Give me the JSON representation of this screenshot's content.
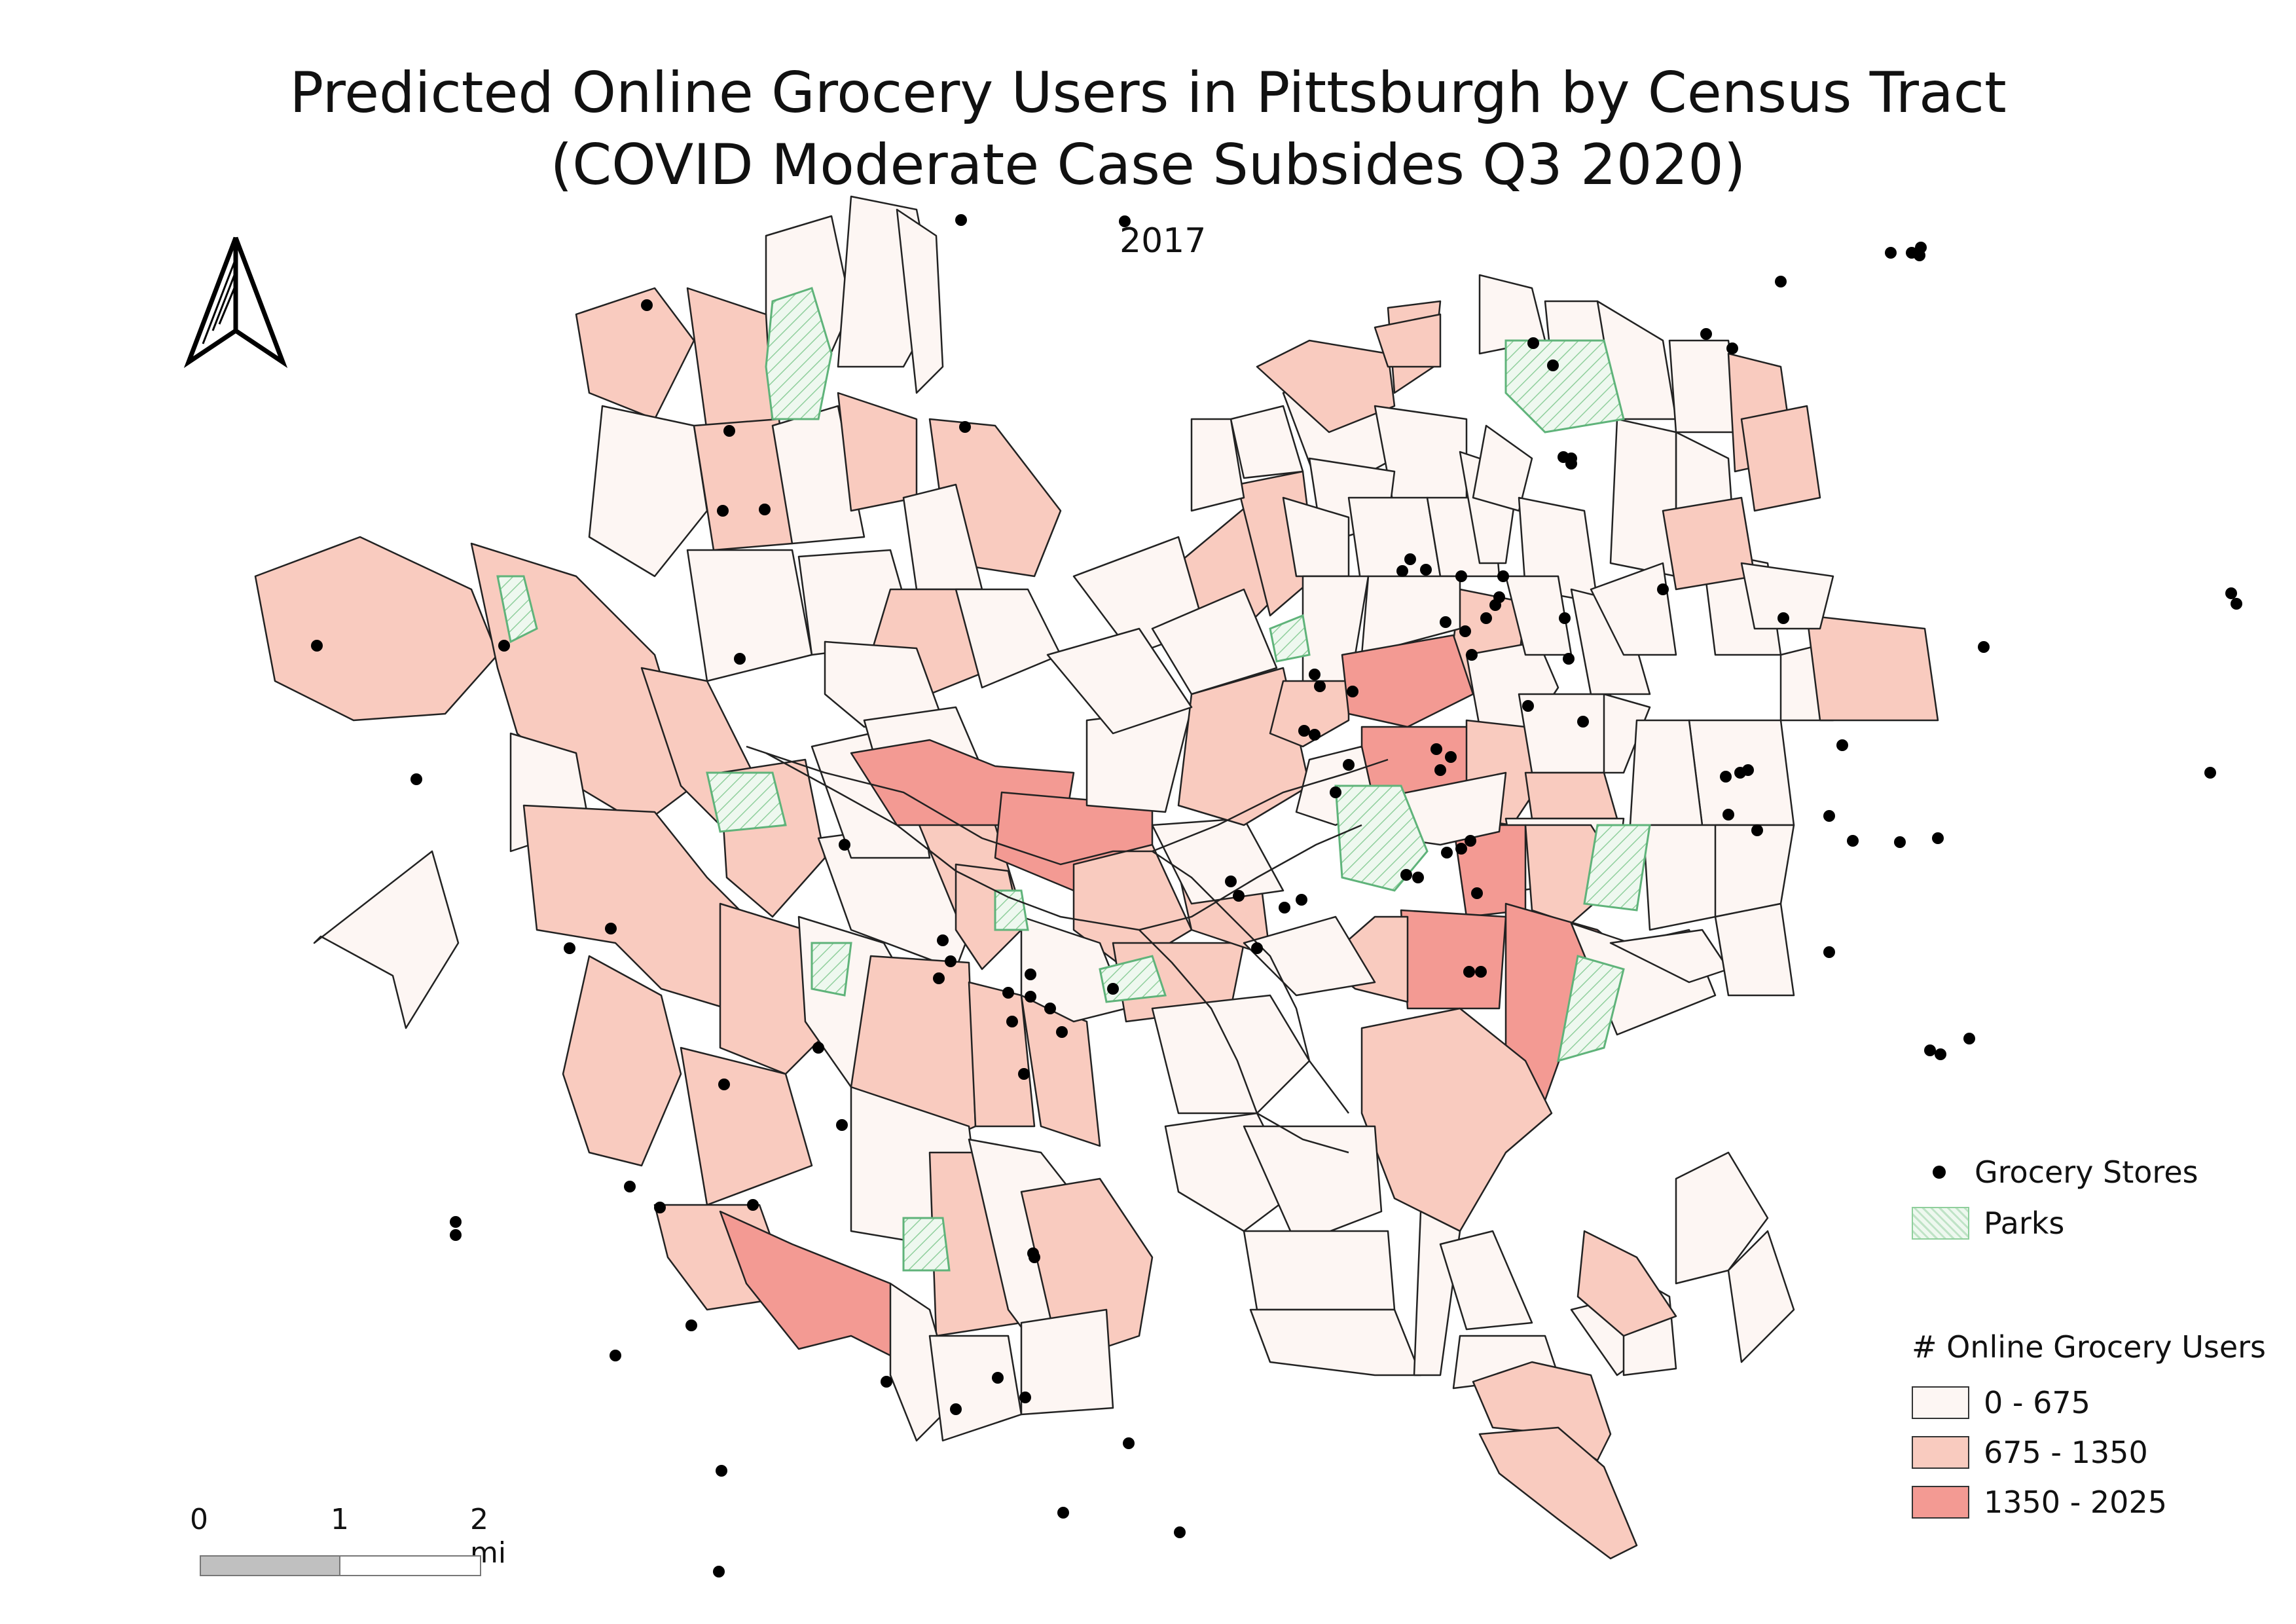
{
  "title": {
    "line1": "Predicted Online Grocery Users in Pittsburgh by Census Tract",
    "line2": "(COVID Moderate Case Subsides Q3 2020)"
  },
  "subtitle": "2017",
  "legend": {
    "stores_label": "Grocery Stores",
    "parks_label": "Parks",
    "heading": "# Online Grocery Users",
    "classes": [
      {
        "label": "0 - 675",
        "color": "#fdf6f3"
      },
      {
        "label": "675 - 1350",
        "color": "#f9cbbf"
      },
      {
        "label": "1350 - 2025",
        "color": "#f39a93"
      }
    ]
  },
  "scale_bar": {
    "labels": [
      "0",
      "1",
      "2 mi"
    ]
  },
  "colors": {
    "outline": "#222222",
    "park_stroke": "#5fb37a",
    "park_fill": "#d7eedb",
    "store": "#000000",
    "scale_fill": "#c0c0c0"
  },
  "icons": [
    "north-arrow-icon"
  ]
}
